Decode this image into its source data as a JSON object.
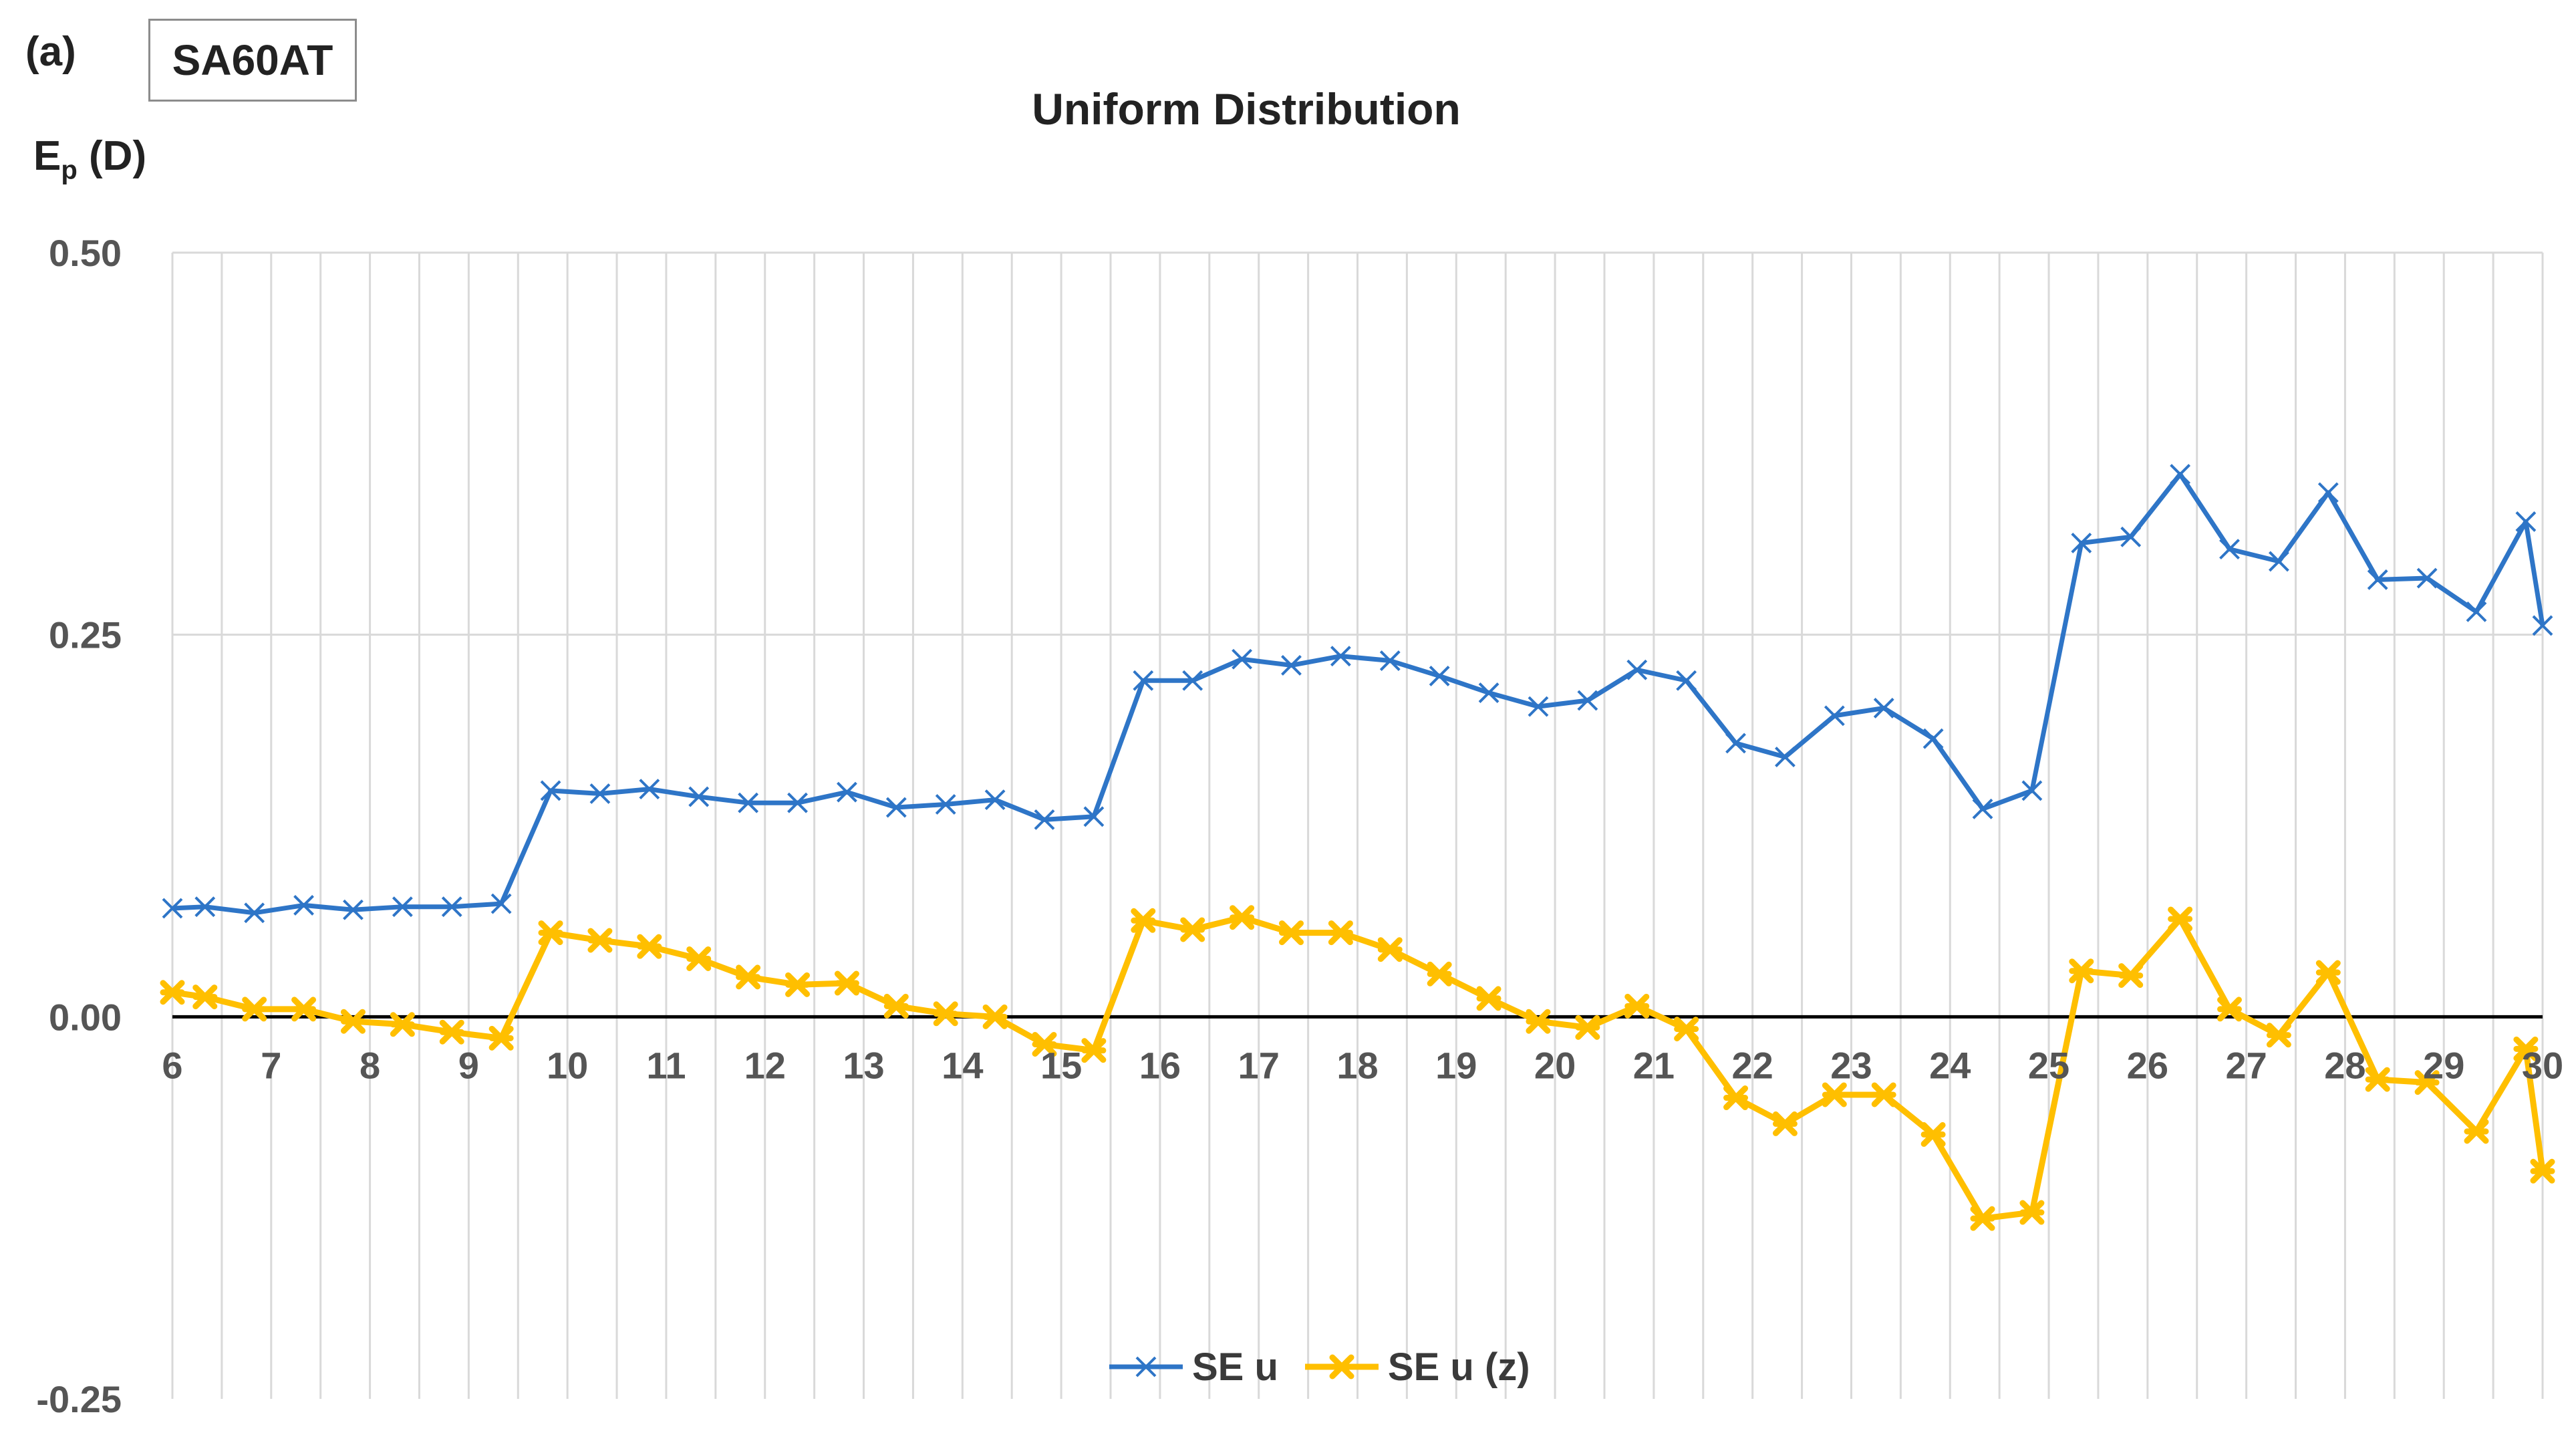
{
  "panel_label": "(a)",
  "box_label": "SA60AT",
  "chart_data": {
    "type": "line",
    "title": "Uniform Distribution",
    "ylabel_main": "E",
    "ylabel_sub": "p",
    "ylabel_unit": "(D)",
    "xlim": [
      6,
      30
    ],
    "ylim": [
      -0.25,
      0.5
    ],
    "xticks": [
      6,
      7,
      8,
      9,
      10,
      11,
      12,
      13,
      14,
      15,
      16,
      17,
      18,
      19,
      20,
      21,
      22,
      23,
      24,
      25,
      26,
      27,
      28,
      29,
      30
    ],
    "yticks": [
      {
        "value": 0.5,
        "label": "0.50"
      },
      {
        "value": 0.25,
        "label": "0.25"
      },
      {
        "value": 0.0,
        "label": "0.00"
      },
      {
        "value": -0.25,
        "label": "-0.25"
      }
    ],
    "grid": "vertical",
    "legend_position": "bottom",
    "x": [
      6,
      6.33,
      6.83,
      7.33,
      7.83,
      8.33,
      8.83,
      9.33,
      9.83,
      10.33,
      10.83,
      11.33,
      11.83,
      12.33,
      12.83,
      13.33,
      13.83,
      14.33,
      14.83,
      15.33,
      15.83,
      16.33,
      16.83,
      17.33,
      17.83,
      18.33,
      18.83,
      19.33,
      19.83,
      20.33,
      20.83,
      21.33,
      21.83,
      22.33,
      22.83,
      23.33,
      23.83,
      24.33,
      24.83,
      25.33,
      25.83,
      26.33,
      26.83,
      27.33,
      27.83,
      28.33,
      28.83,
      29.33,
      29.83,
      30
    ],
    "series": [
      {
        "name": "SE u",
        "color": "#2e75c7",
        "marker": "x",
        "values": [
          0.071,
          0.072,
          0.068,
          0.073,
          0.07,
          0.072,
          0.072,
          0.074,
          0.148,
          0.146,
          0.149,
          0.144,
          0.14,
          0.14,
          0.147,
          0.137,
          0.139,
          0.142,
          0.129,
          0.131,
          0.22,
          0.22,
          0.234,
          0.23,
          0.236,
          0.233,
          0.223,
          0.212,
          0.203,
          0.207,
          0.227,
          0.22,
          0.179,
          0.17,
          0.197,
          0.202,
          0.182,
          0.136,
          0.148,
          0.31,
          0.314,
          0.355,
          0.306,
          0.298,
          0.343,
          0.286,
          0.287,
          0.265,
          0.324,
          0.256
        ]
      },
      {
        "name": "SE u (z)",
        "color": "#ffbf00",
        "marker": "star",
        "values": [
          0.016,
          0.013,
          0.005,
          0.005,
          -0.003,
          -0.005,
          -0.01,
          -0.014,
          0.055,
          0.05,
          0.046,
          0.038,
          0.026,
          0.021,
          0.022,
          0.007,
          0.002,
          0.0,
          -0.018,
          -0.022,
          0.063,
          0.057,
          0.065,
          0.055,
          0.055,
          0.044,
          0.028,
          0.012,
          -0.003,
          -0.007,
          0.007,
          -0.008,
          -0.053,
          -0.07,
          -0.051,
          -0.051,
          -0.077,
          -0.132,
          -0.128,
          0.03,
          0.027,
          0.064,
          0.005,
          -0.012,
          0.029,
          -0.041,
          -0.043,
          -0.075,
          -0.021,
          -0.101
        ]
      }
    ]
  }
}
